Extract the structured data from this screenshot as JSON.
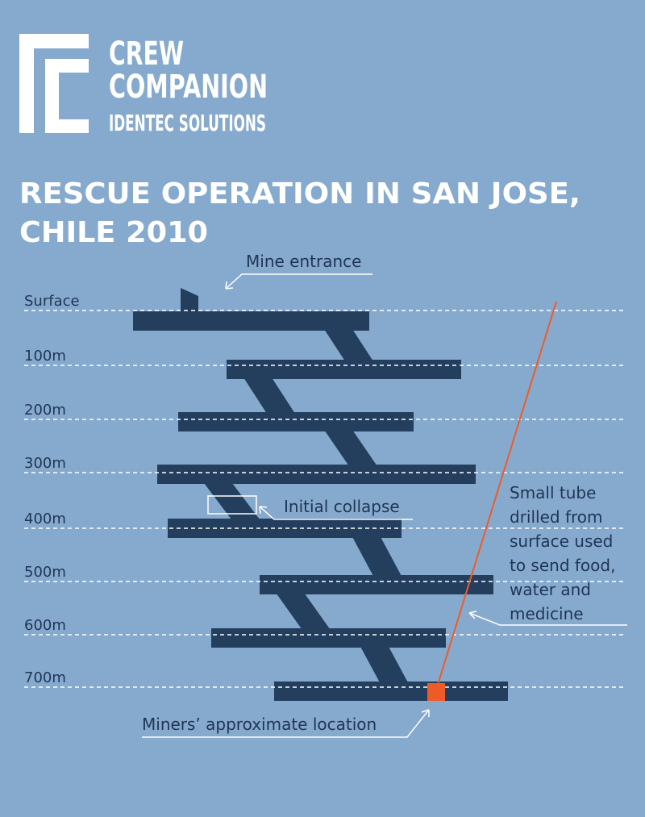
{
  "logo": {
    "line1": "CREW",
    "line2": "COMPANION",
    "line3": "IDENTEC SOLUTIONS"
  },
  "title": {
    "lines": [
      "RESCUE OPERATION IN SAN JOSE,",
      "CHILE 2010"
    ]
  },
  "depth_labels": [
    "Surface",
    "100m",
    "200m",
    "300m",
    "400m",
    "500m",
    "600m",
    "700m"
  ],
  "annotations": {
    "mine_entrance": "Mine entrance",
    "initial_collapse": "Initial collapse",
    "tube": [
      "Small tube",
      "drilled from",
      "surface used",
      "to send food,",
      "water and",
      "medicine"
    ],
    "miners_location": "Miners’ approximate location"
  }
}
